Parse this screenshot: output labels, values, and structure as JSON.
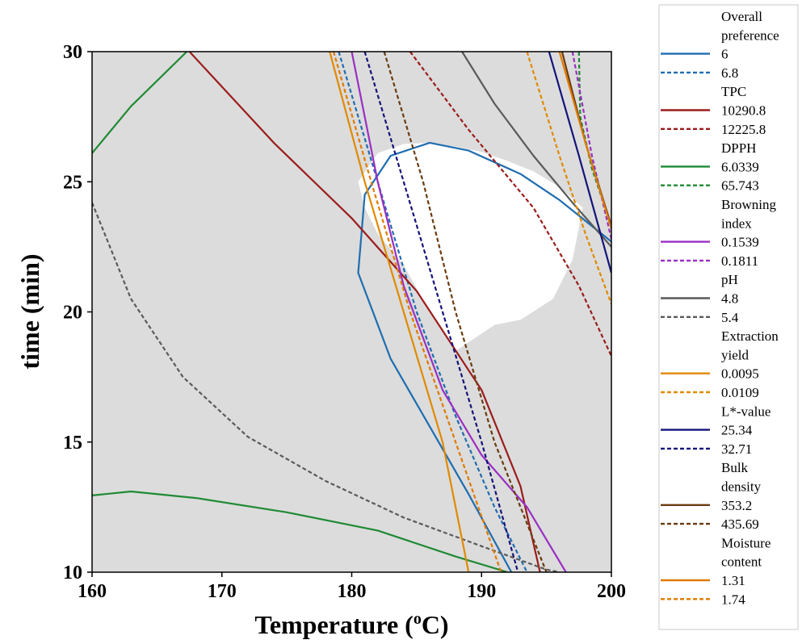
{
  "chart_data": {
    "type": "line",
    "chart_kind": "overlaid contour plot",
    "xlabel": "Temperature (",
    "xlabel_sup": "o",
    "xlabel_end": "C)",
    "ylabel": "time (min)",
    "xlim": [
      160,
      200
    ],
    "ylim": [
      10,
      30
    ],
    "x_ticks": [
      "160",
      "170",
      "180",
      "190",
      "200"
    ],
    "y_ticks": [
      "10",
      "15",
      "20",
      "25",
      "30"
    ],
    "plot_background": "#dcdcdc",
    "feasible_region_color": "#ffffff",
    "grid": false,
    "legend_position": "right",
    "feasible_region": [
      [
        180.5,
        25
      ],
      [
        182,
        26.1
      ],
      [
        184,
        26.45
      ],
      [
        186,
        26.5
      ],
      [
        188,
        26.35
      ],
      [
        190,
        26.15
      ],
      [
        192,
        25.8
      ],
      [
        194,
        25.4
      ],
      [
        196,
        24.8
      ],
      [
        197.8,
        24
      ],
      [
        197,
        22
      ],
      [
        195.5,
        20.5
      ],
      [
        193,
        19.7
      ],
      [
        191,
        19.5
      ],
      [
        189.5,
        19
      ],
      [
        188,
        18.5
      ],
      [
        186,
        20
      ],
      [
        184,
        21.8
      ],
      [
        182,
        23
      ],
      [
        181,
        24
      ],
      [
        180.5,
        25
      ]
    ],
    "groups": [
      {
        "name": "Overall preference",
        "color": "#1f6db0",
        "series": [
          {
            "label": "6",
            "dash": false,
            "points": [
              [
                192.3,
                10
              ],
              [
                189,
                13
              ],
              [
                186,
                15.6
              ],
              [
                183,
                18.2
              ],
              [
                180.5,
                21.5
              ],
              [
                181,
                24.5
              ],
              [
                183,
                26
              ],
              [
                186,
                26.5
              ],
              [
                189,
                26.2
              ],
              [
                193,
                25.3
              ],
              [
                196,
                24.3
              ],
              [
                198.5,
                23.3
              ],
              [
                200,
                22.7
              ]
            ]
          },
          {
            "label": "6.8",
            "dash": true,
            "points": [
              [
                179,
                30
              ],
              [
                182,
                25
              ],
              [
                185,
                20
              ],
              [
                188,
                16
              ],
              [
                191,
                12.5
              ],
              [
                193.5,
                10
              ]
            ]
          }
        ]
      },
      {
        "name": "TPC",
        "color": "#9b1c1c",
        "series": [
          {
            "label": "10290.8",
            "dash": false,
            "points": [
              [
                167.5,
                30
              ],
              [
                174,
                26.5
              ],
              [
                180,
                23.6
              ],
              [
                185,
                20.8
              ],
              [
                190,
                17
              ],
              [
                193,
                13.3
              ],
              [
                194.5,
                10
              ]
            ]
          },
          {
            "label": "12225.8",
            "dash": true,
            "points": [
              [
                184.5,
                30
              ],
              [
                189,
                27
              ],
              [
                194,
                24
              ],
              [
                197.5,
                21
              ],
              [
                200,
                18.3
              ]
            ]
          }
        ]
      },
      {
        "name": "DPPH",
        "color": "#1f8a34",
        "series": [
          {
            "label": "6.0339",
            "dash": false,
            "points": [
              [
                160,
                26.1
              ],
              [
                163,
                27.9
              ],
              [
                167.3,
                30
              ]
            ]
          },
          {
            "label": "65.743",
            "dash": true,
            "points": [
              [
                197.5,
                30
              ],
              [
                197.6,
                27.5
              ],
              [
                198.5,
                25.5
              ],
              [
                200,
                23.3
              ]
            ]
          },
          {
            "label": "6.0339",
            "dash": false,
            "points": [
              [
                160,
                12.95
              ],
              [
                163,
                13.1
              ],
              [
                168,
                12.85
              ],
              [
                175,
                12.3
              ],
              [
                182,
                11.6
              ],
              [
                188,
                10.6
              ],
              [
                192,
                10
              ]
            ]
          }
        ]
      },
      {
        "name": "Browning index",
        "color": "#9a2fc2",
        "series": [
          {
            "label": "0.1539",
            "dash": false,
            "points": [
              [
                180,
                30
              ],
              [
                182,
                25
              ],
              [
                184,
                21
              ],
              [
                187,
                17
              ],
              [
                190,
                14.5
              ],
              [
                193.5,
                12.5
              ],
              [
                196.5,
                10
              ]
            ]
          },
          {
            "label": "0.1811",
            "dash": true,
            "points": [
              [
                197,
                30
              ],
              [
                198.5,
                26
              ],
              [
                200,
                22.8
              ]
            ]
          }
        ]
      },
      {
        "name": "pH",
        "color": "#5a5a5a",
        "series": [
          {
            "label": "4.8",
            "dash": false,
            "points": [
              [
                188.5,
                30
              ],
              [
                191,
                28
              ],
              [
                194,
                26
              ],
              [
                197,
                24.2
              ],
              [
                200,
                22.5
              ]
            ]
          },
          {
            "label": "5.4",
            "dash": true,
            "points": [
              [
                160,
                24.2
              ],
              [
                163,
                20.5
              ],
              [
                167,
                17.5
              ],
              [
                172,
                15.2
              ],
              [
                178,
                13.5
              ],
              [
                184,
                12.1
              ],
              [
                190,
                11
              ],
              [
                195,
                10.1
              ],
              [
                196,
                10
              ]
            ]
          }
        ]
      },
      {
        "name": "Extraction yield",
        "color": "#e08a00",
        "series": [
          {
            "label": "0.0095",
            "dash": false,
            "points": [
              [
                178.3,
                30
              ],
              [
                181,
                25
              ],
              [
                184,
                20
              ],
              [
                187,
                15
              ],
              [
                189,
                10
              ]
            ]
          },
          {
            "label": "0.0109",
            "dash": true,
            "points": [
              [
                193.5,
                30
              ],
              [
                196,
                26
              ],
              [
                198,
                23
              ],
              [
                200,
                20.3
              ]
            ]
          }
        ]
      },
      {
        "name": "L*-value",
        "color": "#13137a",
        "series": [
          {
            "label": "25.34",
            "dash": false,
            "points": [
              [
                195.2,
                30
              ],
              [
                197.5,
                26
              ],
              [
                200,
                21.5
              ]
            ]
          },
          {
            "label": "32.71",
            "dash": true,
            "points": [
              [
                181,
                30
              ],
              [
                184,
                25
              ],
              [
                187,
                20
              ],
              [
                190,
                15
              ],
              [
                192.8,
                10
              ]
            ]
          }
        ]
      },
      {
        "name": "Bulk density",
        "color": "#6a3b10",
        "series": [
          {
            "label": "353.2",
            "dash": false,
            "points": [
              [
                196.2,
                30
              ],
              [
                198,
                26.5
              ],
              [
                200,
                23.3
              ]
            ]
          },
          {
            "label": "435.69",
            "dash": true,
            "points": [
              [
                182.5,
                30
              ],
              [
                185.5,
                25
              ],
              [
                188,
                20
              ],
              [
                191,
                15
              ],
              [
                195,
                10
              ]
            ]
          }
        ]
      },
      {
        "name": "Moisture content",
        "color": "#e07a00",
        "series": [
          {
            "label": "1.31",
            "dash": false,
            "points": [
              [
                196,
                30
              ],
              [
                198,
                26.5
              ],
              [
                200,
                23.2
              ]
            ]
          },
          {
            "label": "1.74",
            "dash": true,
            "points": [
              [
                178.6,
                30
              ],
              [
                181.5,
                25
              ],
              [
                184.5,
                20
              ],
              [
                188,
                15
              ],
              [
                191.5,
                10
              ]
            ]
          }
        ]
      }
    ],
    "legend_entries": [
      {
        "type": "header",
        "text": "Overall"
      },
      {
        "type": "header",
        "text": "preference"
      },
      {
        "type": "item",
        "text": "6",
        "color": "#1f6db0",
        "dash": false
      },
      {
        "type": "item",
        "text": "6.8",
        "color": "#1f6db0",
        "dash": true
      },
      {
        "type": "header",
        "text": "TPC"
      },
      {
        "type": "item",
        "text": "10290.8",
        "color": "#9b1c1c",
        "dash": false
      },
      {
        "type": "item",
        "text": "12225.8",
        "color": "#9b1c1c",
        "dash": true
      },
      {
        "type": "header",
        "text": "DPPH"
      },
      {
        "type": "item",
        "text": "6.0339",
        "color": "#1f8a34",
        "dash": false
      },
      {
        "type": "item",
        "text": "65.743",
        "color": "#1f8a34",
        "dash": true
      },
      {
        "type": "header",
        "text": "Browning"
      },
      {
        "type": "header",
        "text": "index"
      },
      {
        "type": "item",
        "text": "0.1539",
        "color": "#9a2fc2",
        "dash": false
      },
      {
        "type": "item",
        "text": "0.1811",
        "color": "#9a2fc2",
        "dash": true
      },
      {
        "type": "header",
        "text": "pH"
      },
      {
        "type": "item",
        "text": "4.8",
        "color": "#5a5a5a",
        "dash": false
      },
      {
        "type": "item",
        "text": "5.4",
        "color": "#5a5a5a",
        "dash": true
      },
      {
        "type": "header",
        "text": "Extraction"
      },
      {
        "type": "header",
        "text": "yield"
      },
      {
        "type": "item",
        "text": "0.0095",
        "color": "#e08a00",
        "dash": false
      },
      {
        "type": "item",
        "text": "0.0109",
        "color": "#e08a00",
        "dash": true
      },
      {
        "type": "header",
        "text": "L*-value"
      },
      {
        "type": "item",
        "text": "25.34",
        "color": "#13137a",
        "dash": false
      },
      {
        "type": "item",
        "text": "32.71",
        "color": "#13137a",
        "dash": true
      },
      {
        "type": "header",
        "text": "Bulk"
      },
      {
        "type": "header",
        "text": "density"
      },
      {
        "type": "item",
        "text": "353.2",
        "color": "#6a3b10",
        "dash": false
      },
      {
        "type": "item",
        "text": "435.69",
        "color": "#6a3b10",
        "dash": true
      },
      {
        "type": "header",
        "text": "Moisture"
      },
      {
        "type": "header",
        "text": "content"
      },
      {
        "type": "item",
        "text": "1.31",
        "color": "#e07a00",
        "dash": false
      },
      {
        "type": "item",
        "text": "1.74",
        "color": "#e07a00",
        "dash": true
      }
    ]
  }
}
